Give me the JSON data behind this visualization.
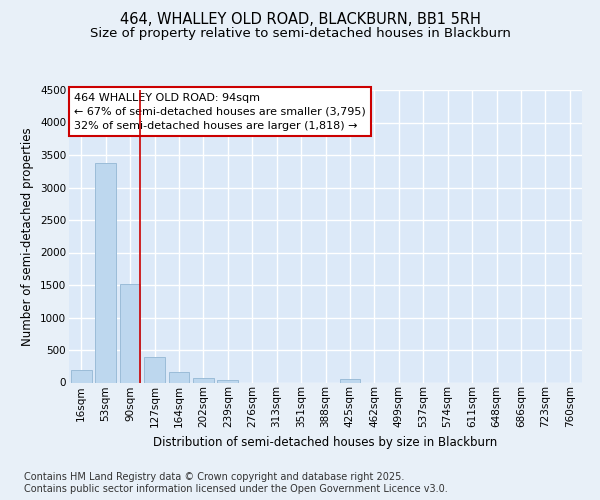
{
  "title1": "464, WHALLEY OLD ROAD, BLACKBURN, BB1 5RH",
  "title2": "Size of property relative to semi-detached houses in Blackburn",
  "xlabel": "Distribution of semi-detached houses by size in Blackburn",
  "ylabel": "Number of semi-detached properties",
  "categories": [
    "16sqm",
    "53sqm",
    "90sqm",
    "127sqm",
    "164sqm",
    "202sqm",
    "239sqm",
    "276sqm",
    "313sqm",
    "351sqm",
    "388sqm",
    "425sqm",
    "462sqm",
    "499sqm",
    "537sqm",
    "574sqm",
    "611sqm",
    "648sqm",
    "686sqm",
    "723sqm",
    "760sqm"
  ],
  "values": [
    200,
    3380,
    1510,
    390,
    155,
    75,
    35,
    0,
    0,
    0,
    0,
    50,
    0,
    0,
    0,
    0,
    0,
    0,
    0,
    0,
    0
  ],
  "bar_color": "#bdd7ee",
  "bar_edge_color": "#9bbcd8",
  "vline_color": "#cc0000",
  "annotation_text": "464 WHALLEY OLD ROAD: 94sqm\n← 67% of semi-detached houses are smaller (3,795)\n32% of semi-detached houses are larger (1,818) →",
  "annotation_box_facecolor": "#ffffff",
  "annotation_box_edgecolor": "#cc0000",
  "ylim": [
    0,
    4500
  ],
  "yticks": [
    0,
    500,
    1000,
    1500,
    2000,
    2500,
    3000,
    3500,
    4000,
    4500
  ],
  "bg_color": "#e8f0f8",
  "plot_bg_color": "#dce9f8",
  "grid_color": "#ffffff",
  "footer": "Contains HM Land Registry data © Crown copyright and database right 2025.\nContains public sector information licensed under the Open Government Licence v3.0.",
  "title_fontsize": 10.5,
  "subtitle_fontsize": 9.5,
  "axis_label_fontsize": 8.5,
  "tick_fontsize": 7.5,
  "footer_fontsize": 7,
  "annot_fontsize": 8
}
